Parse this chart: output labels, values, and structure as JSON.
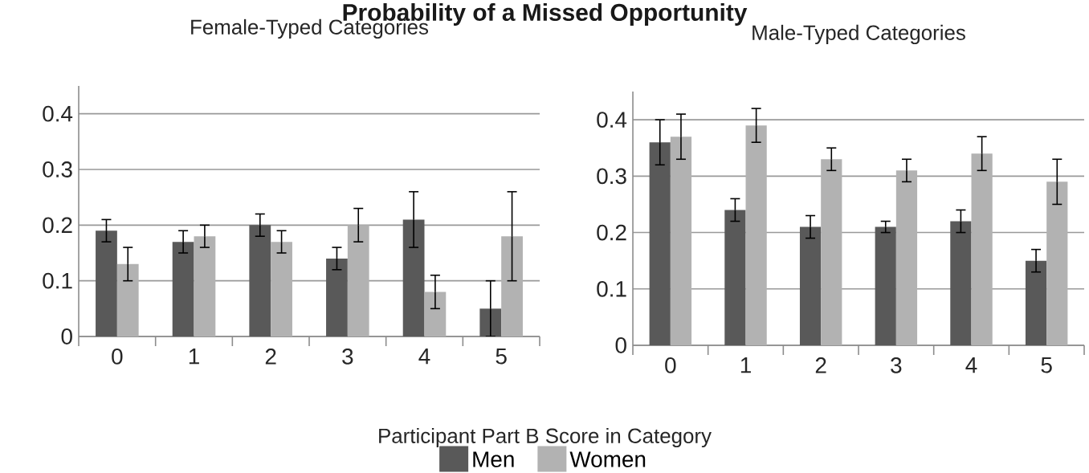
{
  "chart_data": [
    {
      "type": "bar",
      "title": "Probability of a Missed Opportunity",
      "subtitle": "Female-Typed Categories",
      "categories": [
        "0",
        "1",
        "2",
        "3",
        "4",
        "5"
      ],
      "ylim": [
        0,
        0.45
      ],
      "yticks": [
        0,
        0.1,
        0.2,
        0.3,
        0.4
      ],
      "grid": "y",
      "series": [
        {
          "color": "#595959",
          "values": [
            0.19,
            0.17,
            0.2,
            0.14,
            0.21,
            0.05
          ],
          "errors": [
            0.02,
            0.02,
            0.02,
            0.02,
            0.05,
            0.05
          ]
        },
        {
          "color": "#b2b2b2",
          "values": [
            0.13,
            0.18,
            0.17,
            0.2,
            0.08,
            0.18
          ],
          "errors": [
            0.03,
            0.02,
            0.02,
            0.03,
            0.03,
            0.08
          ]
        }
      ]
    },
    {
      "type": "bar",
      "title": "Male-Typed Categories",
      "xlabel": "Participant Part B Score in Category",
      "categories": [
        "0",
        "1",
        "2",
        "3",
        "4",
        "5"
      ],
      "ylim": [
        0,
        0.45
      ],
      "yticks": [
        0,
        0.1,
        0.2,
        0.3,
        0.4
      ],
      "grid": "y",
      "legend": "bottom",
      "series": [
        {
          "name": "Men",
          "color": "#595959",
          "values": [
            0.36,
            0.24,
            0.21,
            0.21,
            0.22,
            0.15
          ],
          "errors": [
            0.04,
            0.02,
            0.02,
            0.01,
            0.02,
            0.02
          ]
        },
        {
          "name": "Women",
          "color": "#b2b2b2",
          "values": [
            0.37,
            0.39,
            0.33,
            0.31,
            0.34,
            0.29
          ],
          "errors": [
            0.04,
            0.03,
            0.02,
            0.02,
            0.03,
            0.04
          ]
        }
      ]
    }
  ]
}
